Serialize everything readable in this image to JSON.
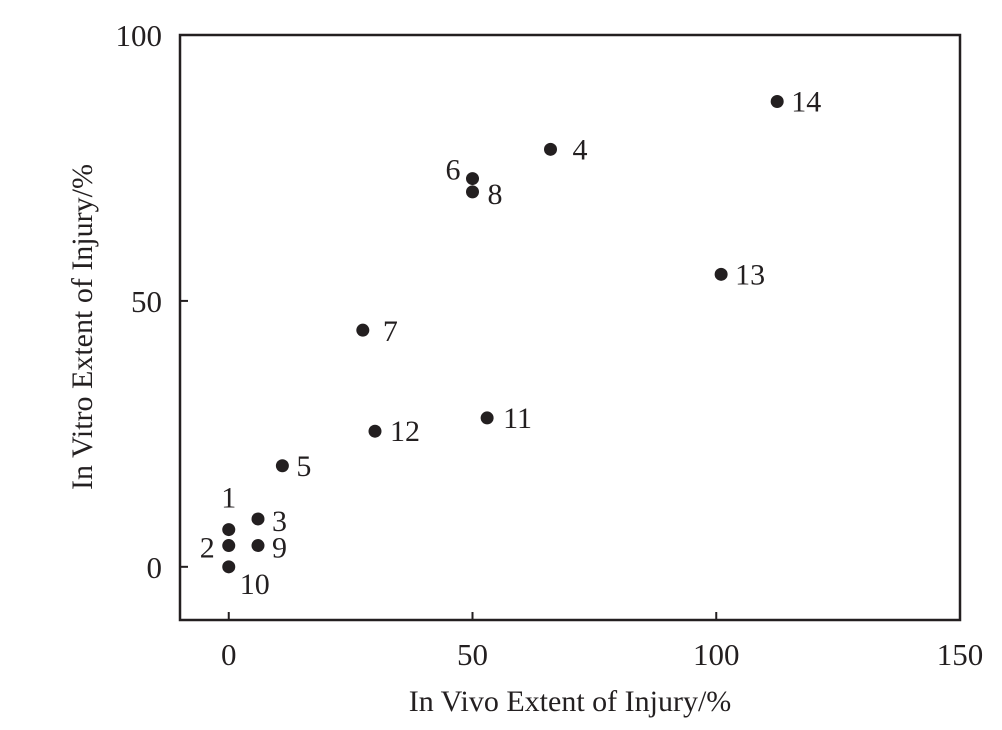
{
  "chart_data": {
    "type": "scatter",
    "title": "",
    "xlabel": "In Vivo Extent of Injury/%",
    "ylabel": "In Vitro Extent of Injury/%",
    "xlim": [
      -10,
      150
    ],
    "ylim": [
      -10,
      100
    ],
    "xticks": [
      0,
      50,
      100,
      150
    ],
    "yticks": [
      0,
      50,
      100
    ],
    "grid": false,
    "legend": "none",
    "marker_color": "#231f20",
    "points": [
      {
        "label": "1",
        "x": 0,
        "y": 7
      },
      {
        "label": "2",
        "x": 0,
        "y": 4
      },
      {
        "label": "3",
        "x": 6,
        "y": 9
      },
      {
        "label": "4",
        "x": 66,
        "y": 78.5
      },
      {
        "label": "5",
        "x": 11,
        "y": 19
      },
      {
        "label": "6",
        "x": 50,
        "y": 73
      },
      {
        "label": "7",
        "x": 27.5,
        "y": 44.5
      },
      {
        "label": "8",
        "x": 50,
        "y": 70.5
      },
      {
        "label": "9",
        "x": 6,
        "y": 4
      },
      {
        "label": "10",
        "x": 0,
        "y": 0
      },
      {
        "label": "11",
        "x": 53,
        "y": 28
      },
      {
        "label": "12",
        "x": 30,
        "y": 25.5
      },
      {
        "label": "13",
        "x": 101,
        "y": 55
      },
      {
        "label": "14",
        "x": 112.5,
        "y": 87.5
      }
    ]
  }
}
